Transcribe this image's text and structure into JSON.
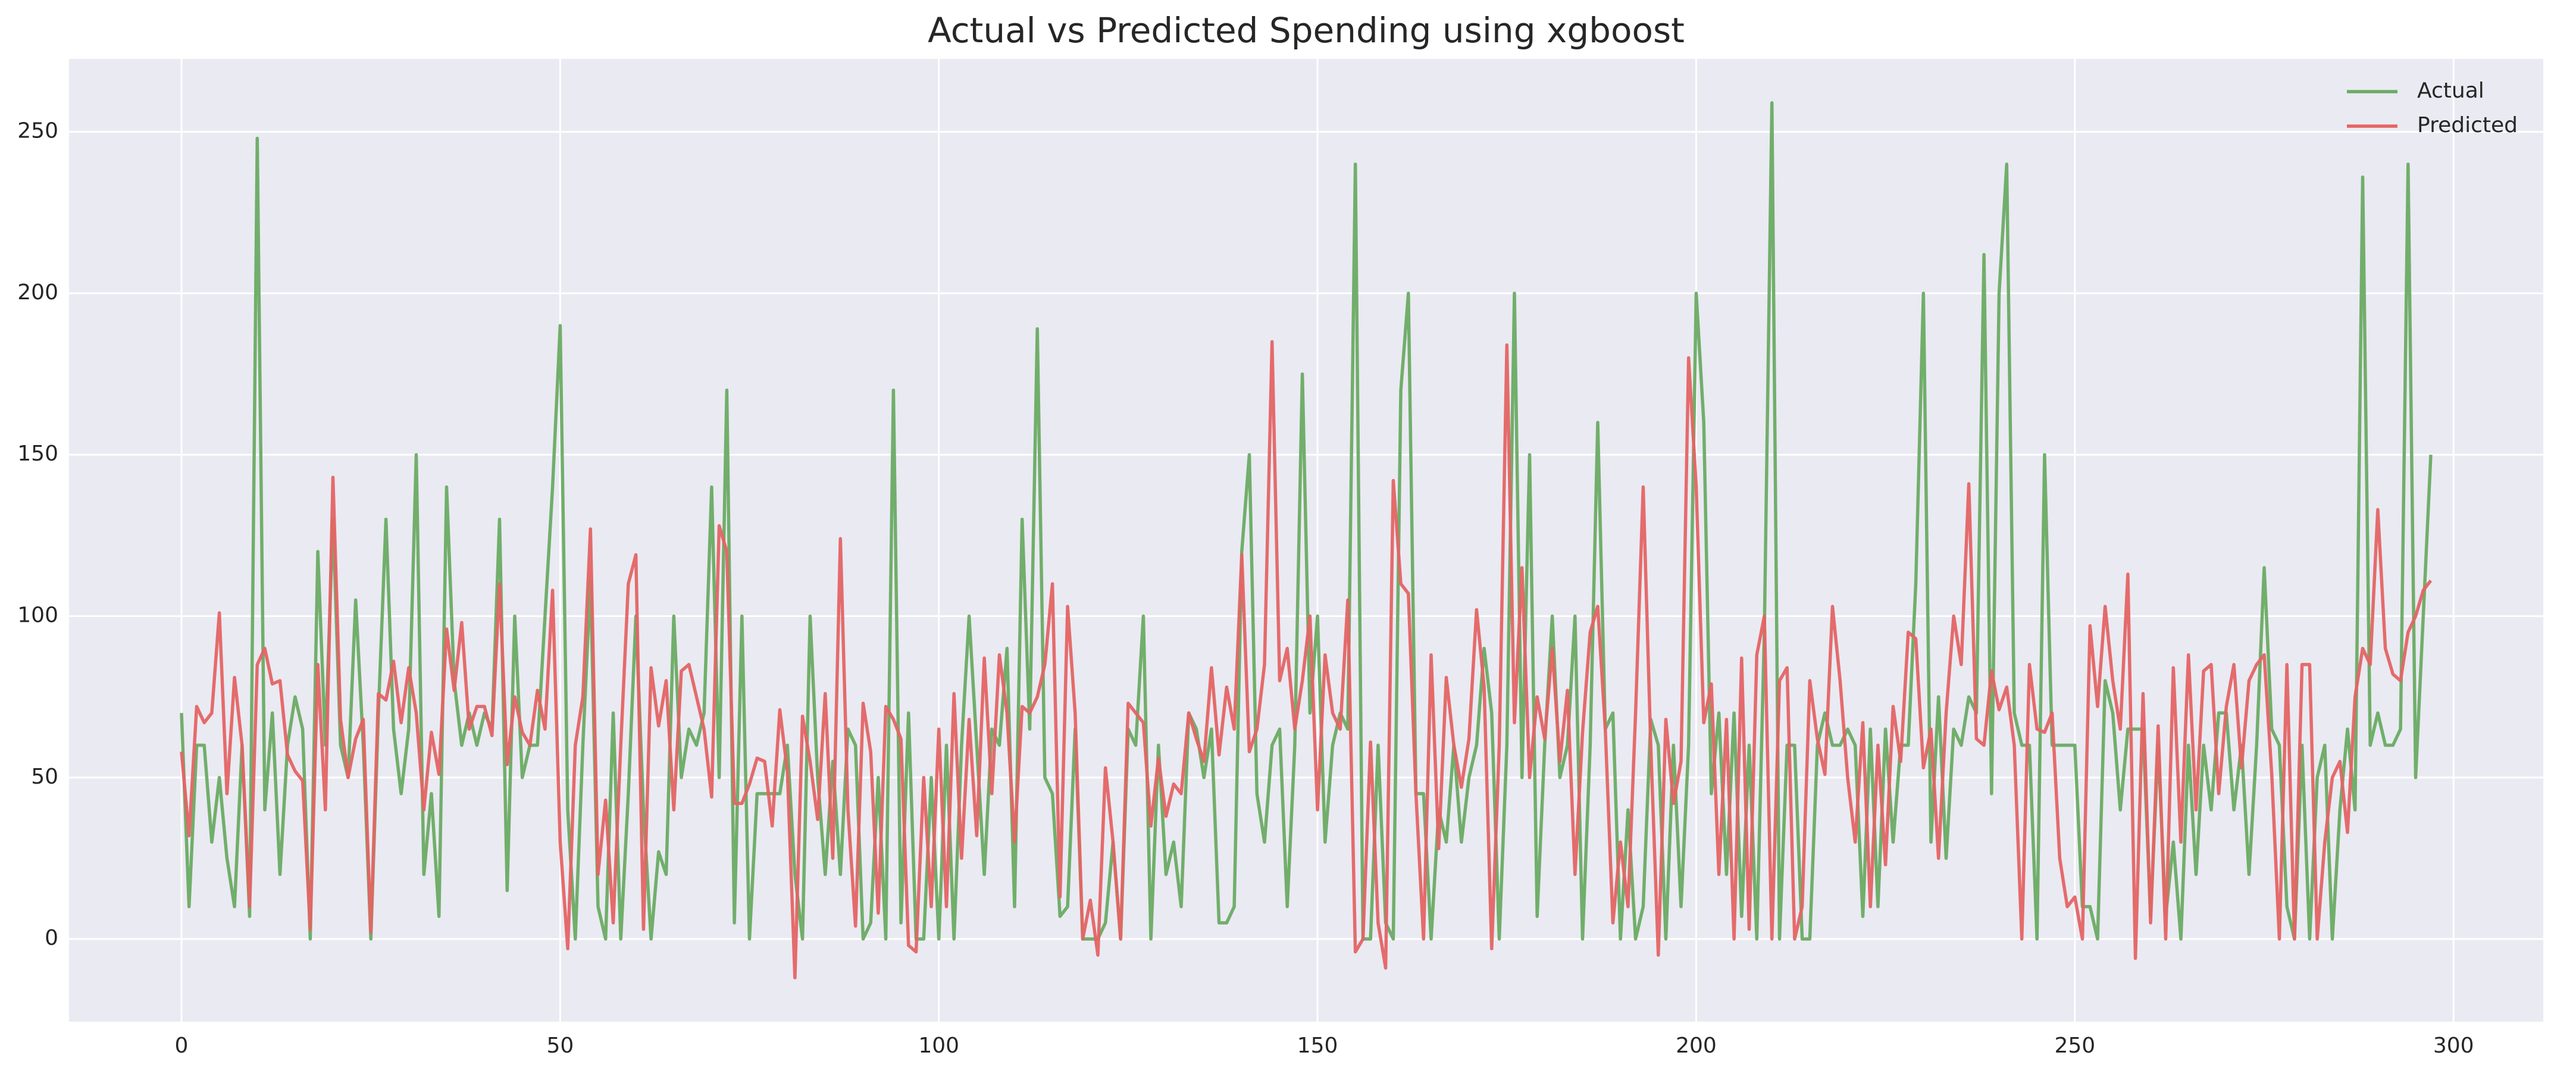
{
  "chart_data": {
    "type": "line",
    "title": "Actual vs Predicted Spending using xgboost",
    "x": [
      0,
      1,
      2,
      3,
      4,
      5,
      6,
      7,
      8,
      9,
      10,
      11,
      12,
      13,
      14,
      15,
      16,
      17,
      18,
      19,
      20,
      21,
      22,
      23,
      24,
      25,
      26,
      27,
      28,
      29,
      30,
      31,
      32,
      33,
      34,
      35,
      36,
      37,
      38,
      39,
      40,
      41,
      42,
      43,
      44,
      45,
      46,
      47,
      48,
      49,
      50,
      51,
      52,
      53,
      54,
      55,
      56,
      57,
      58,
      59,
      60,
      61,
      62,
      63,
      64,
      65,
      66,
      67,
      68,
      69,
      70,
      71,
      72,
      73,
      74,
      75,
      76,
      77,
      78,
      79,
      80,
      81,
      82,
      83,
      84,
      85,
      86,
      87,
      88,
      89,
      90,
      91,
      92,
      93,
      94,
      95,
      96,
      97,
      98,
      99,
      100,
      101,
      102,
      103,
      104,
      105,
      106,
      107,
      108,
      109,
      110,
      111,
      112,
      113,
      114,
      115,
      116,
      117,
      118,
      119,
      120,
      121,
      122,
      123,
      124,
      125,
      126,
      127,
      128,
      129,
      130,
      131,
      132,
      133,
      134,
      135,
      136,
      137,
      138,
      139,
      140,
      141,
      142,
      143,
      144,
      145,
      146,
      147,
      148,
      149,
      150,
      151,
      152,
      153,
      154,
      155,
      156,
      157,
      158,
      159,
      160,
      161,
      162,
      163,
      164,
      165,
      166,
      167,
      168,
      169,
      170,
      171,
      172,
      173,
      174,
      175,
      176,
      177,
      178,
      179,
      180,
      181,
      182,
      183,
      184,
      185,
      186,
      187,
      188,
      189,
      190,
      191,
      192,
      193,
      194,
      195,
      196,
      197,
      198,
      199,
      200,
      201,
      202,
      203,
      204,
      205,
      206,
      207,
      208,
      209,
      210,
      211,
      212,
      213,
      214,
      215,
      216,
      217,
      218,
      219,
      220,
      221,
      222,
      223,
      224,
      225,
      226,
      227,
      228,
      229,
      230,
      231,
      232,
      233,
      234,
      235,
      236,
      237,
      238,
      239,
      240,
      241,
      242,
      243,
      244,
      245,
      246,
      247,
      248,
      249,
      250,
      251,
      252,
      253,
      254,
      255,
      256,
      257,
      258,
      259,
      260,
      261,
      262,
      263,
      264,
      265,
      266,
      267,
      268,
      269,
      270,
      271,
      272,
      273,
      274,
      275,
      276,
      277,
      278,
      279,
      280,
      281,
      282,
      283,
      284,
      285,
      286,
      287,
      288,
      289,
      290,
      291,
      292,
      293,
      294,
      295,
      296,
      297
    ],
    "series": [
      {
        "name": "Actual",
        "color": "#6aab63",
        "values": [
          70,
          10,
          60,
          60,
          30,
          50,
          25,
          10,
          60,
          7,
          248,
          40,
          70,
          20,
          60,
          75,
          65,
          0,
          120,
          60,
          130,
          60,
          50,
          105,
          60,
          0,
          70,
          130,
          65,
          45,
          65,
          150,
          20,
          45,
          7,
          140,
          80,
          60,
          70,
          60,
          70,
          65,
          130,
          15,
          100,
          50,
          60,
          60,
          100,
          140,
          190,
          40,
          0,
          60,
          111,
          10,
          0,
          70,
          0,
          45,
          100,
          40,
          0,
          27,
          20,
          100,
          50,
          65,
          60,
          70,
          140,
          50,
          170,
          5,
          100,
          0,
          45,
          45,
          45,
          45,
          60,
          20,
          0,
          100,
          50,
          20,
          55,
          20,
          65,
          60,
          0,
          5,
          50,
          0,
          170,
          5,
          70,
          0,
          0,
          50,
          0,
          60,
          0,
          60,
          100,
          60,
          20,
          65,
          60,
          90,
          10,
          130,
          65,
          189,
          50,
          45,
          7,
          10,
          65,
          0,
          0,
          0,
          5,
          30,
          0,
          65,
          60,
          100,
          0,
          60,
          20,
          30,
          10,
          70,
          65,
          50,
          65,
          5,
          5,
          10,
          120,
          150,
          45,
          30,
          60,
          65,
          10,
          60,
          175,
          70,
          100,
          30,
          60,
          70,
          65,
          240,
          0,
          0,
          60,
          5,
          0,
          170,
          200,
          45,
          45,
          0,
          40,
          30,
          60,
          30,
          50,
          60,
          90,
          70,
          0,
          60,
          200,
          50,
          150,
          7,
          60,
          100,
          50,
          60,
          100,
          0,
          60,
          160,
          65,
          70,
          0,
          40,
          0,
          10,
          68,
          60,
          0,
          60,
          10,
          60,
          200,
          160,
          45,
          70,
          20,
          70,
          7,
          60,
          0,
          95,
          259,
          0,
          60,
          60,
          0,
          0,
          60,
          70,
          60,
          60,
          65,
          60,
          7,
          65,
          10,
          65,
          30,
          60,
          60,
          110,
          200,
          30,
          75,
          25,
          65,
          60,
          75,
          70,
          212,
          45,
          200,
          240,
          70,
          60,
          60,
          0,
          150,
          60,
          60,
          60,
          60,
          10,
          10,
          0,
          80,
          70,
          40,
          65,
          65,
          65,
          7,
          60,
          7,
          30,
          0,
          60,
          20,
          60,
          40,
          70,
          70,
          40,
          60,
          20,
          60,
          115,
          65,
          60,
          10,
          0,
          60,
          0,
          50,
          60,
          0,
          40,
          65,
          40,
          236,
          60,
          70,
          60,
          60,
          65,
          240,
          50,
          100,
          150
        ]
      },
      {
        "name": "Predicted",
        "color": "#e46464",
        "values": [
          58,
          32,
          72,
          67,
          70,
          101,
          45,
          81,
          60,
          10,
          85,
          90,
          79,
          80,
          57,
          52,
          49,
          3,
          85,
          40,
          143,
          68,
          50,
          62,
          68,
          2,
          76,
          74,
          86,
          67,
          84,
          70,
          40,
          64,
          51,
          96,
          77,
          98,
          65,
          72,
          72,
          63,
          110,
          54,
          75,
          64,
          60,
          77,
          65,
          108,
          30,
          -3,
          60,
          75,
          127,
          20,
          43,
          5,
          60,
          110,
          119,
          3,
          84,
          66,
          80,
          40,
          83,
          85,
          75,
          65,
          44,
          128,
          120,
          42,
          42,
          48,
          56,
          55,
          35,
          71,
          52,
          -12,
          69,
          55,
          37,
          76,
          25,
          124,
          40,
          4,
          73,
          58,
          8,
          72,
          68,
          62,
          -2,
          -4,
          50,
          10,
          65,
          10,
          76,
          25,
          68,
          32,
          87,
          45,
          88,
          70,
          30,
          72,
          70,
          75,
          85,
          110,
          13,
          103,
          70,
          0,
          12,
          -5,
          53,
          30,
          0,
          73,
          70,
          67,
          35,
          56,
          38,
          48,
          45,
          70,
          62,
          55,
          84,
          57,
          78,
          65,
          119,
          58,
          65,
          85,
          185,
          80,
          90,
          65,
          80,
          100,
          40,
          88,
          70,
          65,
          105,
          -4,
          0,
          61,
          5,
          -9,
          142,
          110,
          107,
          45,
          0,
          88,
          28,
          81,
          60,
          47,
          62,
          102,
          78,
          -3,
          60,
          184,
          67,
          115,
          50,
          75,
          62,
          90,
          55,
          77,
          20,
          64,
          95,
          103,
          65,
          5,
          30,
          10,
          70,
          140,
          60,
          -5,
          68,
          42,
          55,
          180,
          140,
          67,
          79,
          20,
          68,
          0,
          87,
          3,
          88,
          100,
          0,
          80,
          84,
          0,
          10,
          80,
          62,
          51,
          103,
          80,
          50,
          30,
          67,
          10,
          60,
          23,
          72,
          55,
          95,
          93,
          53,
          65,
          25,
          70,
          100,
          85,
          141,
          62,
          60,
          83,
          71,
          78,
          60,
          0,
          85,
          65,
          64,
          70,
          25,
          10,
          13,
          0,
          97,
          72,
          103,
          80,
          65,
          113,
          -6,
          76,
          5,
          66,
          0,
          84,
          30,
          88,
          40,
          83,
          85,
          45,
          72,
          85,
          53,
          80,
          85,
          88,
          51,
          0,
          85,
          0,
          85,
          85,
          0,
          30,
          50,
          55,
          33,
          75,
          90,
          85,
          133,
          90,
          82,
          80,
          95,
          100,
          108,
          111
        ]
      }
    ],
    "xlim": [
      -14.85,
      311.85
    ],
    "xticks": [
      0,
      50,
      100,
      150,
      200,
      250,
      300
    ],
    "ylim": [
      -25.6,
      272.6
    ],
    "yticks": [
      0,
      50,
      100,
      150,
      200,
      250
    ],
    "grid": true,
    "legend": "upper right",
    "background": "#eaeaf2"
  }
}
